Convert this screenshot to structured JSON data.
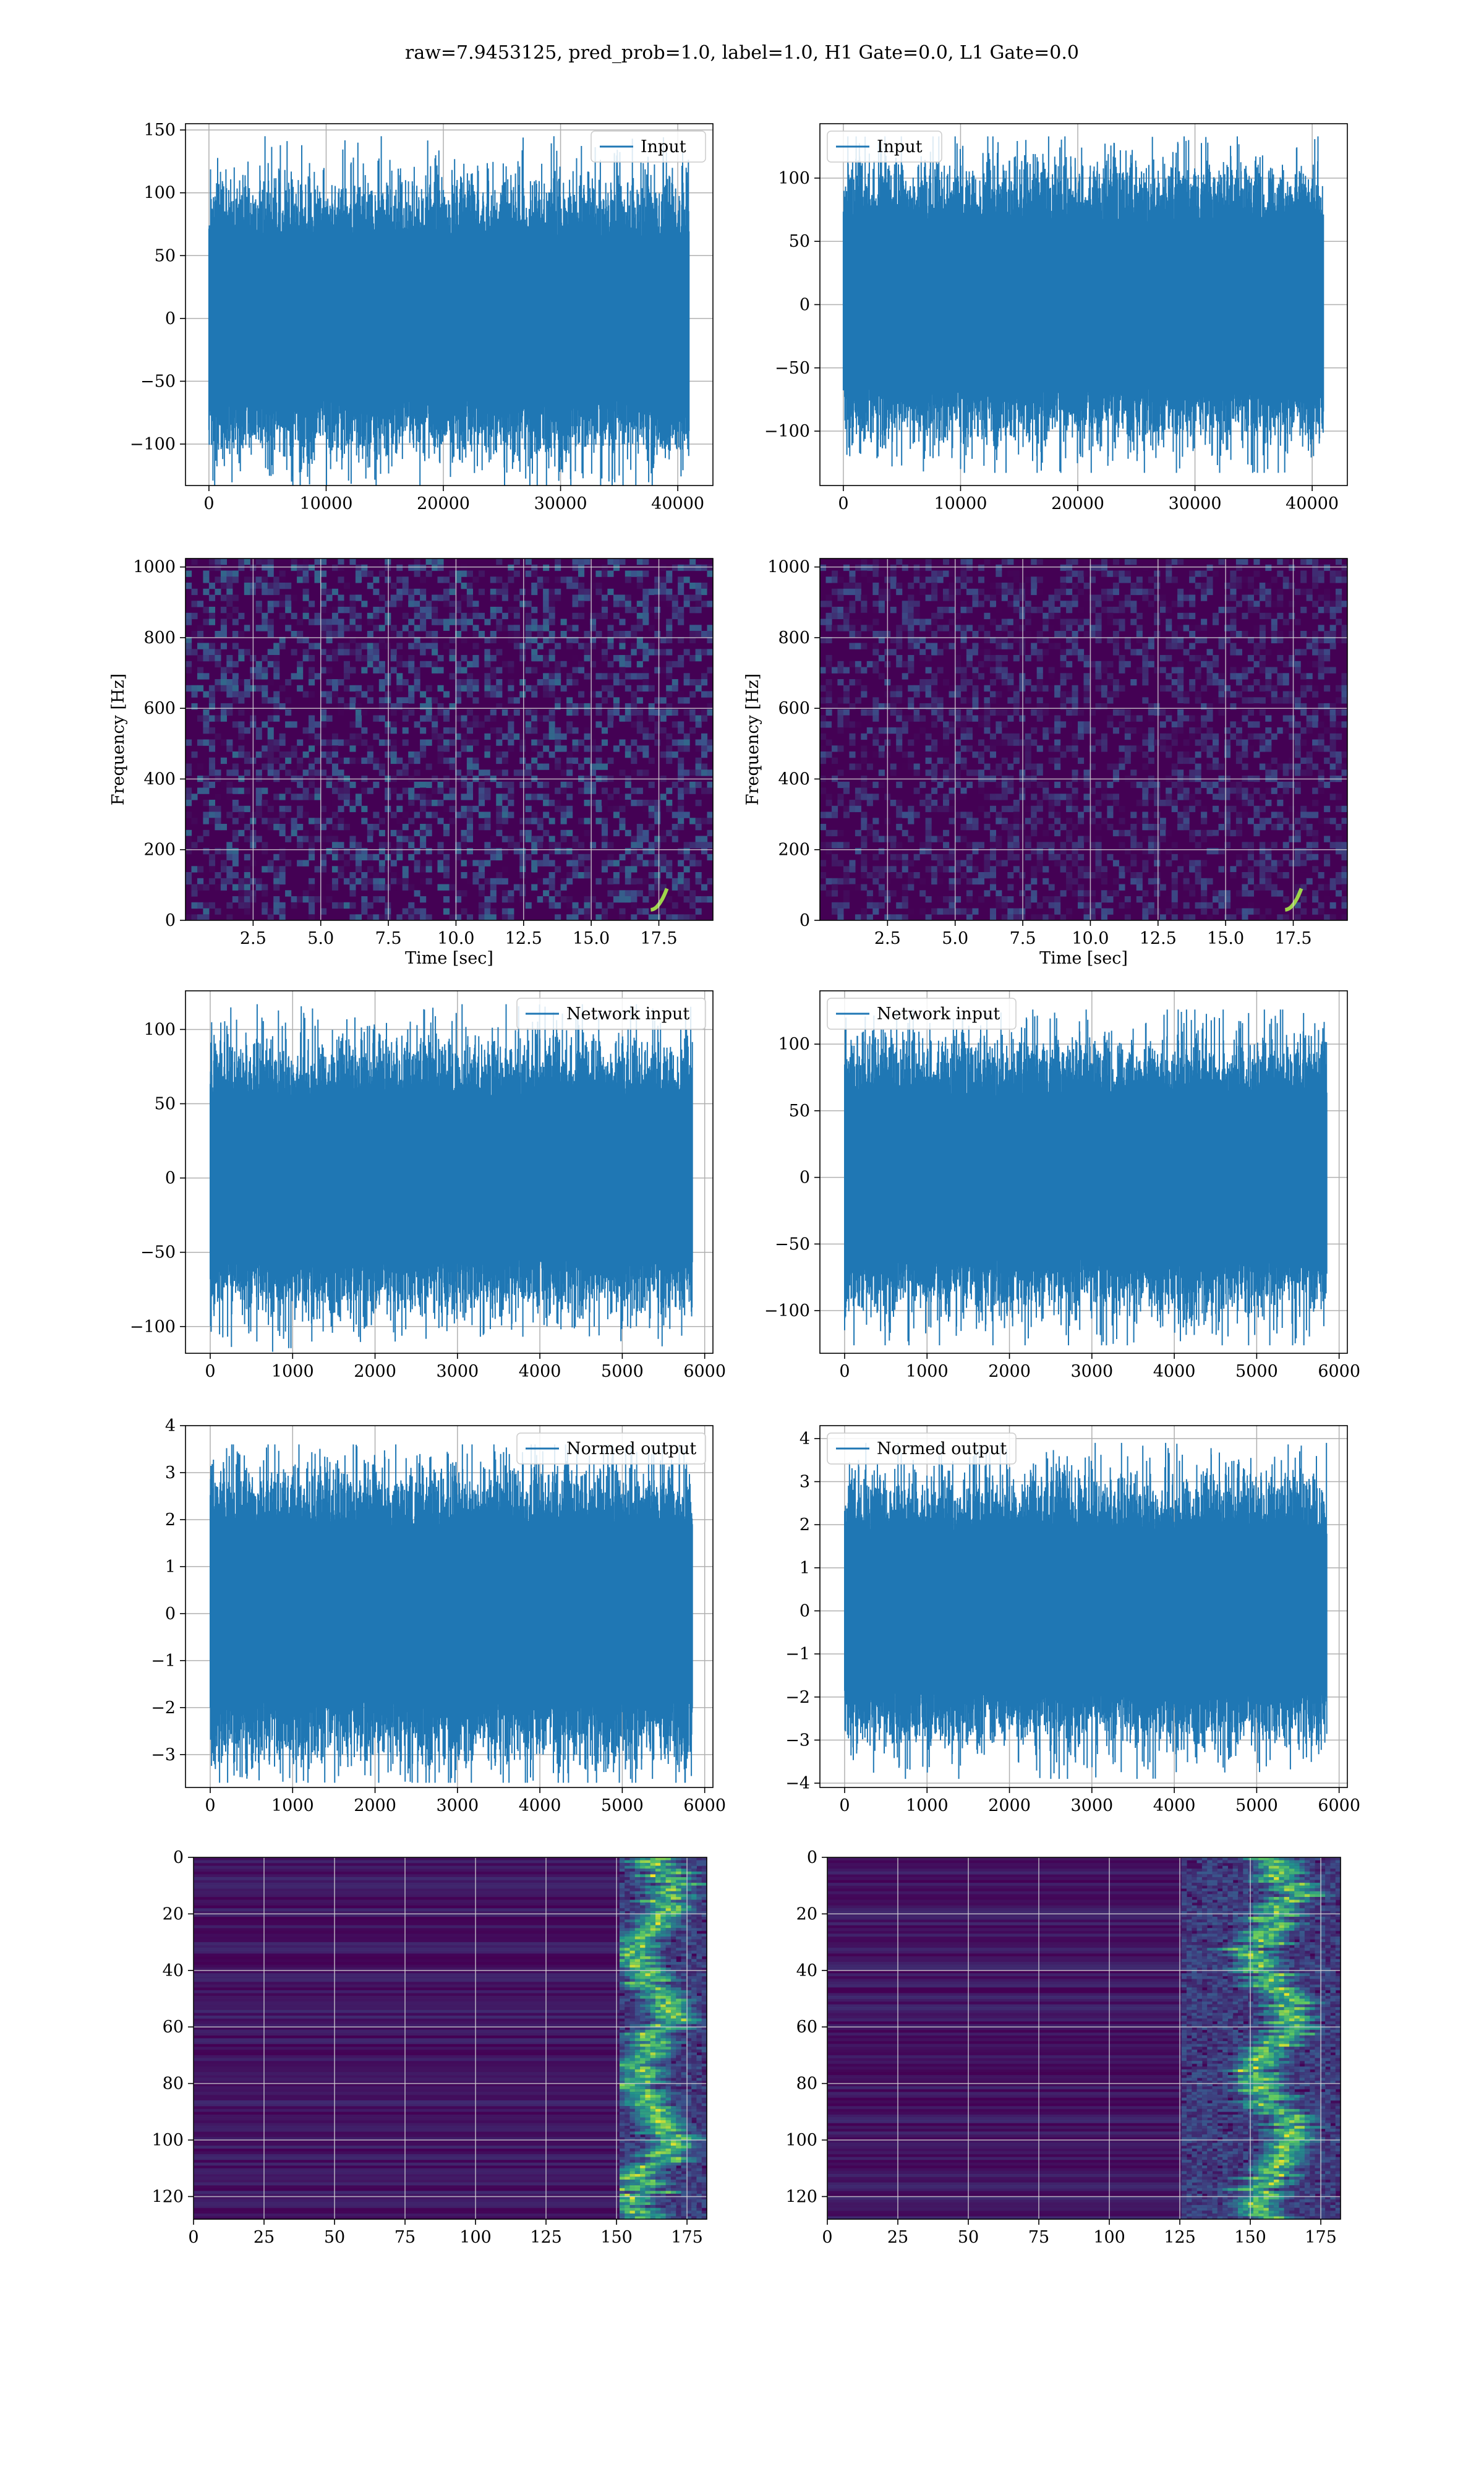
{
  "figure": {
    "title": "raw=7.9453125, pred_prob=1.0, label=1.0, H1 Gate=0.0, L1 Gate=0.0"
  },
  "colors": {
    "trace": "#1f77b4",
    "grid_light": "#b0b0b0",
    "viridis_low": "#440154",
    "viridis_mid": "#21918c",
    "viridis_high": "#fde725"
  },
  "chart_data": [
    {
      "id": "input-h1",
      "type": "line",
      "legend": "Input",
      "legend_pos": "top-right",
      "xlim": [
        -2000,
        43000
      ],
      "ylim": [
        -133,
        155
      ],
      "xticks": [
        0,
        10000,
        20000,
        30000,
        40000
      ],
      "yticks": [
        -100,
        -50,
        0,
        50,
        100,
        150
      ],
      "x_range": [
        0,
        40960
      ],
      "envelope_sigma": 30,
      "peak": 145,
      "grid": true
    },
    {
      "id": "input-l1",
      "type": "line",
      "legend": "Input",
      "legend_pos": "top-left",
      "xlim": [
        -2000,
        43000
      ],
      "ylim": [
        -143,
        143
      ],
      "xticks": [
        0,
        10000,
        20000,
        30000,
        40000
      ],
      "yticks": [
        -100,
        -50,
        0,
        50,
        100
      ],
      "x_range": [
        0,
        40960
      ],
      "envelope_sigma": 30,
      "peak": 133,
      "grid": true
    },
    {
      "id": "spec-h1",
      "type": "heatmap",
      "xlabel": "Time [sec]",
      "ylabel": "Frequency [Hz]",
      "xlim": [
        0,
        19.5
      ],
      "ylim": [
        0,
        1024
      ],
      "xticks": [
        2.5,
        5.0,
        7.5,
        10.0,
        12.5,
        15.0,
        17.5
      ],
      "xticklabels": [
        "2.5",
        "5.0",
        "7.5",
        "10.0",
        "12.5",
        "15.0",
        "17.5"
      ],
      "yticks": [
        0,
        200,
        400,
        600,
        800,
        1000
      ],
      "chirp": {
        "t_end": 17.8,
        "f_range": [
          30,
          90
        ]
      },
      "grid": true
    },
    {
      "id": "spec-l1",
      "type": "heatmap",
      "xlabel": "Time [sec]",
      "ylabel": "Frequency [Hz]",
      "xlim": [
        0,
        19.5
      ],
      "ylim": [
        0,
        1024
      ],
      "xticks": [
        2.5,
        5.0,
        7.5,
        10.0,
        12.5,
        15.0,
        17.5
      ],
      "xticklabels": [
        "2.5",
        "5.0",
        "7.5",
        "10.0",
        "12.5",
        "15.0",
        "17.5"
      ],
      "yticks": [
        0,
        200,
        400,
        600,
        800,
        1000
      ],
      "chirp": {
        "t_end": 17.8,
        "f_range": [
          30,
          90
        ]
      },
      "grid": true
    },
    {
      "id": "net-h1",
      "type": "line",
      "legend": "Network input",
      "legend_pos": "top-right",
      "xlim": [
        -300,
        6100
      ],
      "ylim": [
        -118,
        126
      ],
      "xticks": [
        0,
        1000,
        2000,
        3000,
        4000,
        5000,
        6000
      ],
      "yticks": [
        -100,
        -50,
        0,
        50,
        100
      ],
      "x_range": [
        0,
        5850
      ],
      "envelope_sigma": 25,
      "peak": 117,
      "grid": true
    },
    {
      "id": "net-l1",
      "type": "line",
      "legend": "Network input",
      "legend_pos": "top-left",
      "xlim": [
        -300,
        6100
      ],
      "ylim": [
        -132,
        140
      ],
      "xticks": [
        0,
        1000,
        2000,
        3000,
        4000,
        5000,
        6000
      ],
      "yticks": [
        -100,
        -50,
        0,
        50,
        100
      ],
      "x_range": [
        0,
        5850
      ],
      "envelope_sigma": 28,
      "peak": 126,
      "grid": true
    },
    {
      "id": "norm-h1",
      "type": "line",
      "legend": "Normed output",
      "legend_pos": "top-right",
      "xlim": [
        -300,
        6100
      ],
      "ylim": [
        -3.7,
        4.0
      ],
      "xticks": [
        0,
        1000,
        2000,
        3000,
        4000,
        5000,
        6000
      ],
      "yticks": [
        -3,
        -2,
        -1,
        0,
        1,
        2,
        3,
        4
      ],
      "x_range": [
        0,
        5850
      ],
      "envelope_sigma": 0.85,
      "peak": 3.6,
      "grid": true
    },
    {
      "id": "norm-l1",
      "type": "line",
      "legend": "Normed output",
      "legend_pos": "top-left",
      "xlim": [
        -300,
        6100
      ],
      "ylim": [
        -4.1,
        4.3
      ],
      "xticks": [
        0,
        1000,
        2000,
        3000,
        4000,
        5000,
        6000
      ],
      "yticks": [
        -4,
        -3,
        -2,
        -1,
        0,
        1,
        2,
        3,
        4
      ],
      "x_range": [
        0,
        5850
      ],
      "envelope_sigma": 0.85,
      "peak": 3.9,
      "grid": true
    },
    {
      "id": "qt-h1",
      "type": "heatmap",
      "xlim": [
        0,
        182
      ],
      "ylim": [
        128,
        0
      ],
      "xticks": [
        0,
        25,
        50,
        75,
        100,
        125,
        150,
        175
      ],
      "yticks": [
        0,
        20,
        40,
        60,
        80,
        100,
        120
      ],
      "ridge": {
        "x_start": 150,
        "x_end": 180,
        "center": 162
      },
      "grid": true
    },
    {
      "id": "qt-l1",
      "type": "heatmap",
      "xlim": [
        0,
        182
      ],
      "ylim": [
        128,
        0
      ],
      "xticks": [
        0,
        25,
        50,
        75,
        100,
        125,
        150,
        175
      ],
      "yticks": [
        0,
        20,
        40,
        60,
        80,
        100,
        120
      ],
      "ridge": {
        "x_start": 125,
        "x_end": 180,
        "center": 158
      },
      "grid": true
    }
  ]
}
